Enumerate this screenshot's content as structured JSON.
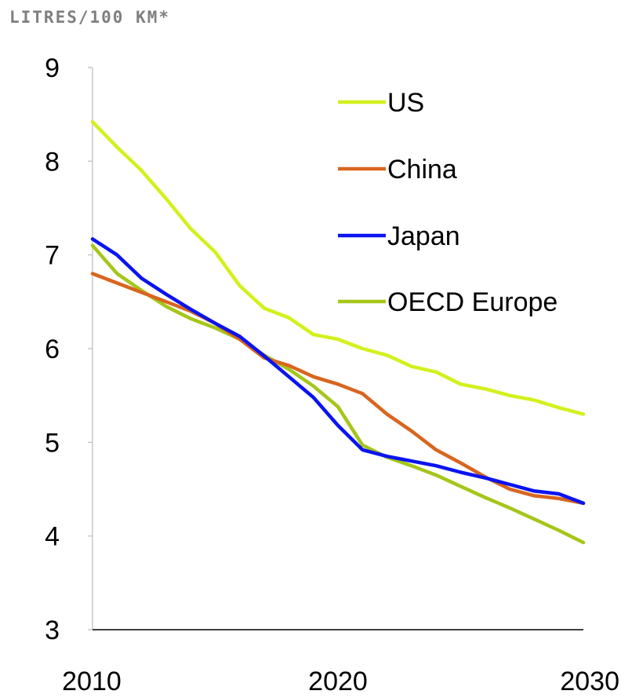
{
  "unit_label": "LITRES/100 KM*",
  "chart_data": {
    "type": "line",
    "title": "",
    "xlabel": "",
    "ylabel": "LITRES/100 KM*",
    "xlim": [
      2010,
      2030
    ],
    "ylim": [
      3,
      9
    ],
    "x_ticks": [
      "2010",
      "2020",
      "2030"
    ],
    "y_ticks": [
      "3",
      "4",
      "5",
      "6",
      "7",
      "8",
      "9"
    ],
    "grid": false,
    "legend_position": "top-right",
    "x": [
      2010,
      2011,
      2012,
      2013,
      2014,
      2015,
      2016,
      2017,
      2018,
      2019,
      2020,
      2021,
      2022,
      2023,
      2024,
      2025,
      2026,
      2027,
      2028,
      2029,
      2030
    ],
    "series": [
      {
        "name": "US",
        "color": "#d4f01c",
        "values": [
          8.42,
          8.15,
          7.9,
          7.6,
          7.28,
          7.03,
          6.67,
          6.43,
          6.33,
          6.15,
          6.1,
          6.0,
          5.93,
          5.81,
          5.75,
          5.62,
          5.57,
          5.5,
          5.45,
          5.37,
          5.3
        ]
      },
      {
        "name": "China",
        "color": "#d9651f",
        "values": [
          6.8,
          6.7,
          6.6,
          6.5,
          6.4,
          6.27,
          6.1,
          5.9,
          5.82,
          5.7,
          5.62,
          5.52,
          5.3,
          5.12,
          4.92,
          4.78,
          4.63,
          4.5,
          4.43,
          4.4,
          4.35
        ]
      },
      {
        "name": "Japan",
        "color": "#0a14f0",
        "values": [
          7.17,
          7.0,
          6.75,
          6.58,
          6.42,
          6.27,
          6.13,
          5.92,
          5.7,
          5.48,
          5.18,
          4.92,
          4.85,
          4.8,
          4.75,
          4.68,
          4.62,
          4.55,
          4.48,
          4.45,
          4.35
        ]
      },
      {
        "name": "OECD Europe",
        "color": "#a5c61a",
        "values": [
          7.1,
          6.8,
          6.62,
          6.45,
          6.32,
          6.22,
          6.1,
          5.93,
          5.78,
          5.6,
          5.38,
          4.97,
          4.84,
          4.75,
          4.65,
          4.53,
          4.41,
          4.3,
          4.18,
          4.06,
          3.93
        ]
      }
    ]
  }
}
